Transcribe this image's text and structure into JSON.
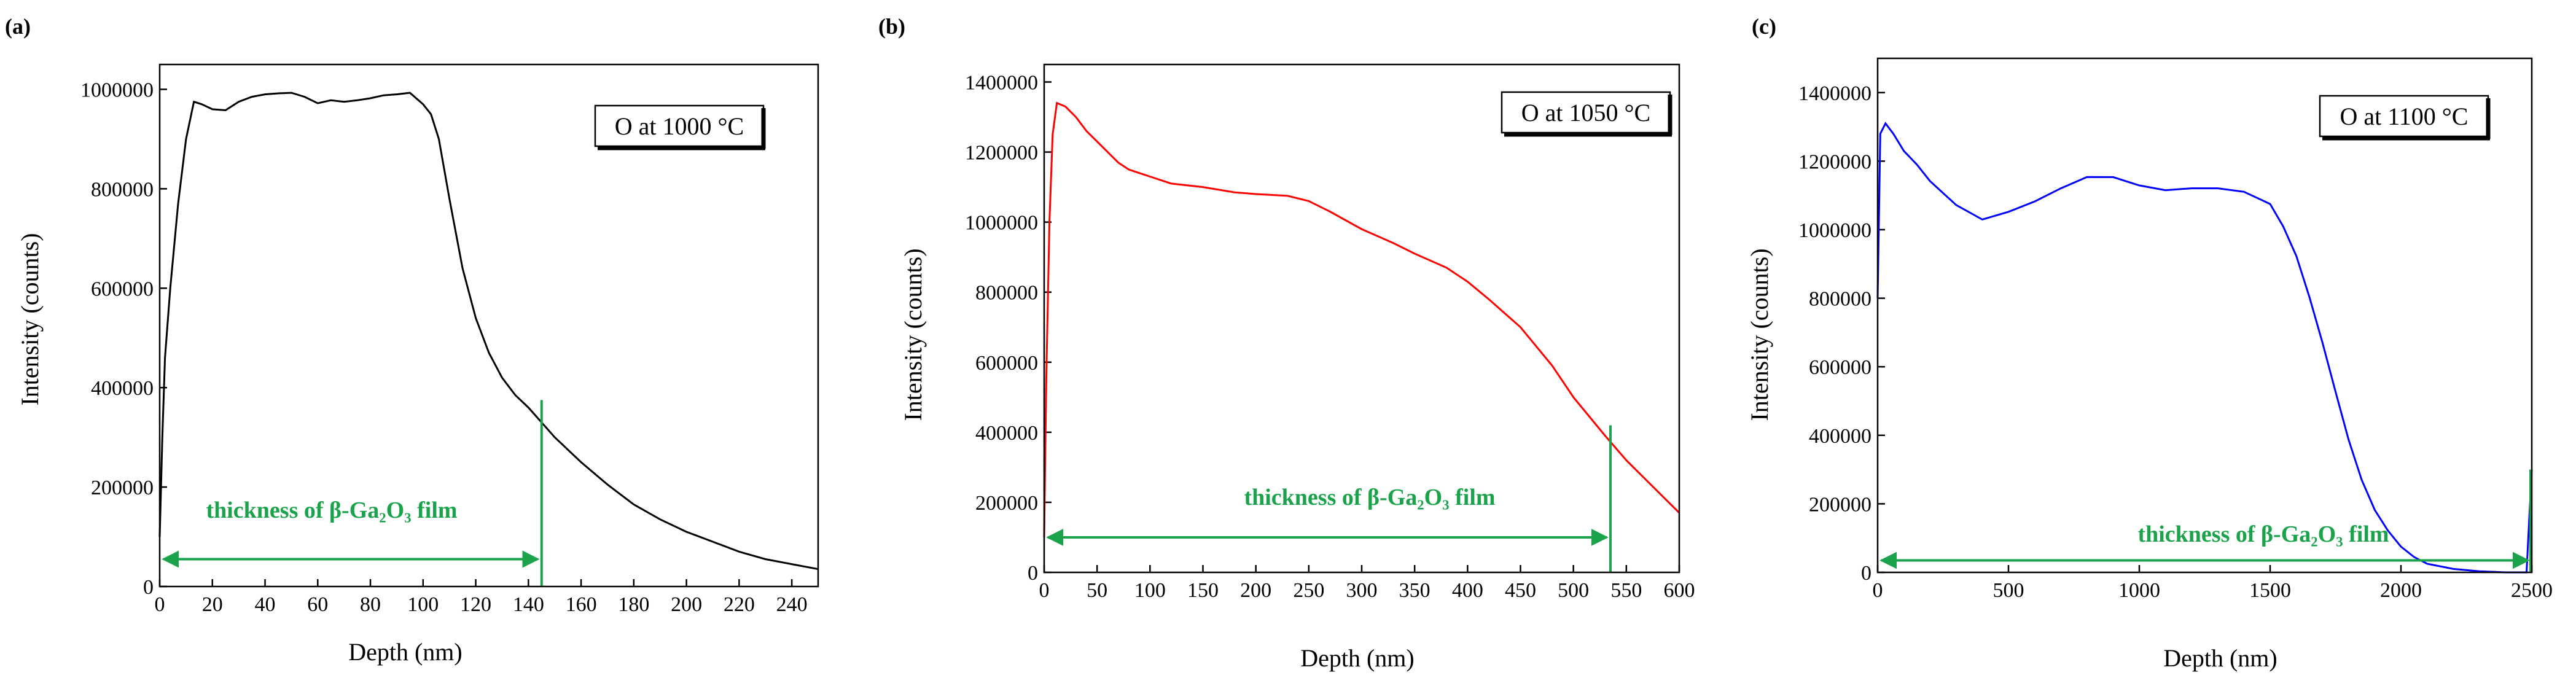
{
  "chart_data": [
    {
      "type": "line",
      "panel_label": "(a)",
      "xlabel": "Depth  (nm)",
      "ylabel": "Intensity  (counts)",
      "xlim": [
        0,
        250
      ],
      "ylim": [
        0,
        1050000
      ],
      "xticks": [
        0,
        20,
        40,
        60,
        80,
        100,
        120,
        140,
        160,
        180,
        200,
        220,
        240
      ],
      "yticks": [
        0,
        200000,
        400000,
        600000,
        800000,
        1000000
      ],
      "xtick_labels": [
        "0",
        "20",
        "40",
        "60",
        "80",
        "100",
        "120",
        "140",
        "160",
        "180",
        "200",
        "220",
        "240"
      ],
      "ytick_labels": [
        "0",
        "200000",
        "400000",
        "600000",
        "800000",
        "1000000"
      ],
      "legend": "O at 1000 °C",
      "series": [
        {
          "name": "O at 1000 °C",
          "color": "#000000",
          "x": [
            0,
            1,
            2,
            4,
            7,
            10,
            13,
            16,
            20,
            25,
            30,
            35,
            40,
            45,
            50,
            55,
            60,
            65,
            70,
            75,
            80,
            85,
            90,
            95,
            100,
            103,
            106,
            110,
            115,
            120,
            125,
            130,
            135,
            140,
            145,
            150,
            160,
            170,
            180,
            190,
            200,
            210,
            220,
            230,
            240,
            250
          ],
          "y": [
            100000,
            300000,
            460000,
            600000,
            770000,
            900000,
            975000,
            970000,
            960000,
            958000,
            975000,
            985000,
            990000,
            992000,
            993000,
            985000,
            972000,
            978000,
            975000,
            978000,
            982000,
            988000,
            990000,
            993000,
            970000,
            950000,
            900000,
            780000,
            640000,
            540000,
            470000,
            420000,
            385000,
            360000,
            330000,
            300000,
            250000,
            205000,
            165000,
            135000,
            110000,
            90000,
            70000,
            55000,
            45000,
            35000
          ]
        }
      ],
      "annotation": {
        "text": "thickness of  β-Ga₂O₃  film",
        "color": "#1aa34a",
        "arrow_from": 0,
        "arrow_to": 145,
        "arrow_y": 55000,
        "marker_x": 145,
        "marker_top": 375000
      }
    },
    {
      "type": "line",
      "panel_label": "(b)",
      "xlabel": "Depth  (nm)",
      "ylabel": "Intensity  (counts)",
      "xlim": [
        0,
        600
      ],
      "ylim": [
        0,
        1450000
      ],
      "xticks": [
        0,
        50,
        100,
        150,
        200,
        250,
        300,
        350,
        400,
        450,
        500,
        550,
        600
      ],
      "yticks": [
        0,
        200000,
        400000,
        600000,
        800000,
        1000000,
        1200000,
        1400000
      ],
      "xtick_labels": [
        "0",
        "50",
        "100",
        "150",
        "200",
        "250",
        "300",
        "350",
        "400",
        "450",
        "500",
        "550",
        "600"
      ],
      "ytick_labels": [
        "0",
        "200000",
        "400000",
        "600000",
        "800000",
        "1000000",
        "1200000",
        "1400000"
      ],
      "legend": "O at 1050 °C",
      "series": [
        {
          "name": "O at 1050 °C",
          "color": "#ff0000",
          "x": [
            0,
            2,
            5,
            8,
            12,
            20,
            30,
            40,
            50,
            60,
            70,
            80,
            90,
            100,
            120,
            150,
            180,
            200,
            230,
            250,
            270,
            300,
            330,
            350,
            380,
            400,
            420,
            450,
            480,
            500,
            530,
            550,
            580,
            600
          ],
          "y": [
            100000,
            550000,
            1000000,
            1250000,
            1340000,
            1330000,
            1300000,
            1260000,
            1230000,
            1200000,
            1170000,
            1150000,
            1140000,
            1130000,
            1110000,
            1100000,
            1085000,
            1080000,
            1075000,
            1060000,
            1030000,
            980000,
            940000,
            910000,
            870000,
            830000,
            780000,
            700000,
            590000,
            500000,
            390000,
            320000,
            230000,
            170000
          ]
        }
      ],
      "annotation": {
        "text": "thickness of  β-Ga₂O₃  film",
        "color": "#1aa34a",
        "arrow_from": 0,
        "arrow_to": 535,
        "arrow_y": 100000,
        "marker_x": 535,
        "marker_top": 420000
      }
    },
    {
      "type": "line",
      "panel_label": "(c)",
      "xlabel": "Depth  (nm)",
      "ylabel": "Intensity  (counts)",
      "xlim": [
        0,
        2500
      ],
      "ylim": [
        0,
        1500000
      ],
      "xticks": [
        0,
        500,
        1000,
        1500,
        2000,
        2500
      ],
      "yticks": [
        0,
        200000,
        400000,
        600000,
        800000,
        1000000,
        1200000,
        1400000
      ],
      "xtick_labels": [
        "0",
        "500",
        "1000",
        "1500",
        "2000",
        "2500"
      ],
      "ytick_labels": [
        "0",
        "200000",
        "400000",
        "600000",
        "800000",
        "1000000",
        "1200000",
        "1400000"
      ],
      "legend": "O at 1100 °C",
      "series": [
        {
          "name": "O at 1100 °C",
          "color": "#0000ff",
          "x": [
            0,
            10,
            30,
            60,
            100,
            150,
            200,
            300,
            400,
            500,
            600,
            700,
            800,
            900,
            1000,
            1100,
            1200,
            1300,
            1400,
            1500,
            1550,
            1600,
            1650,
            1700,
            1750,
            1800,
            1850,
            1900,
            1950,
            2000,
            2050,
            2100,
            2200,
            2300,
            2400,
            2480,
            2500
          ],
          "y": [
            800000,
            1280000,
            1310000,
            1280000,
            1230000,
            1180000,
            1140000,
            1080000,
            1040000,
            1055000,
            1075000,
            1110000,
            1150000,
            1160000,
            1140000,
            1120000,
            1115000,
            1110000,
            1105000,
            1080000,
            1020000,
            930000,
            800000,
            660000,
            520000,
            390000,
            280000,
            190000,
            120000,
            75000,
            45000,
            25000,
            10000,
            3000,
            0,
            0,
            300000
          ]
        }
      ],
      "annotation": {
        "text": "thickness of  β-Ga₂O₃  film",
        "color": "#1aa34a",
        "arrow_from": 0,
        "arrow_to": 2500,
        "arrow_y": 35000,
        "marker_x": null,
        "marker_top": null
      }
    }
  ]
}
